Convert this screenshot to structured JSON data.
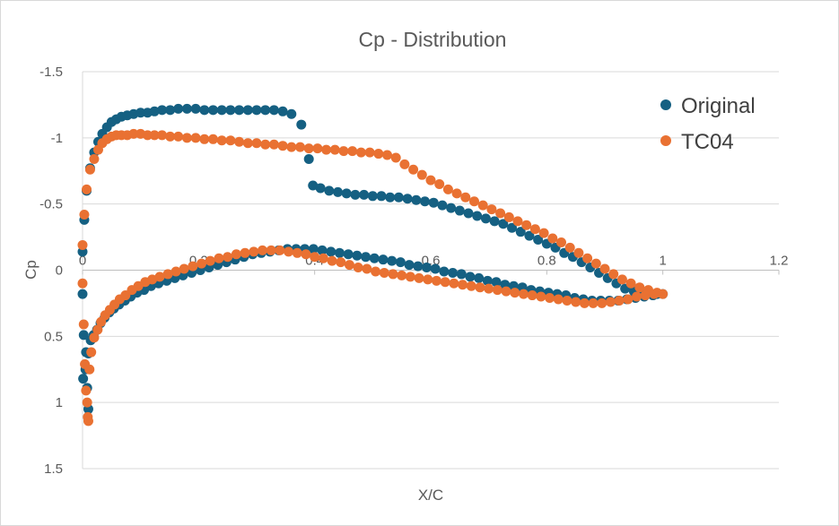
{
  "chart_data": {
    "type": "scatter",
    "title": "Cp - Distribution",
    "xlabel": "X/C",
    "ylabel": "Cp",
    "xlim": [
      0,
      1.2
    ],
    "ylim": [
      -1.5,
      1.5
    ],
    "y_reversed": true,
    "grid": "horizontal",
    "legend_position": "top-right",
    "x_ticks": [
      "0",
      "0.2",
      "0.4",
      "0.6",
      "0.8",
      "1",
      "1.2"
    ],
    "y_ticks": [
      "-1.5",
      "-1",
      "-0.5",
      "0",
      "0.5",
      "1",
      "1.5"
    ],
    "series": [
      {
        "name": "Original",
        "color": "#156082",
        "points": [
          [
            0.0,
            -0.14
          ],
          [
            0.003,
            -0.38
          ],
          [
            0.007,
            -0.6
          ],
          [
            0.013,
            -0.77
          ],
          [
            0.02,
            -0.89
          ],
          [
            0.027,
            -0.97
          ],
          [
            0.034,
            -1.03
          ],
          [
            0.042,
            -1.08
          ],
          [
            0.05,
            -1.12
          ],
          [
            0.058,
            -1.14
          ],
          [
            0.067,
            -1.16
          ],
          [
            0.077,
            -1.17
          ],
          [
            0.088,
            -1.18
          ],
          [
            0.1,
            -1.19
          ],
          [
            0.112,
            -1.19
          ],
          [
            0.124,
            -1.2
          ],
          [
            0.137,
            -1.21
          ],
          [
            0.151,
            -1.21
          ],
          [
            0.165,
            -1.22
          ],
          [
            0.18,
            -1.22
          ],
          [
            0.195,
            -1.22
          ],
          [
            0.21,
            -1.21
          ],
          [
            0.225,
            -1.21
          ],
          [
            0.24,
            -1.21
          ],
          [
            0.255,
            -1.21
          ],
          [
            0.27,
            -1.21
          ],
          [
            0.285,
            -1.21
          ],
          [
            0.3,
            -1.21
          ],
          [
            0.315,
            -1.21
          ],
          [
            0.33,
            -1.21
          ],
          [
            0.345,
            -1.2
          ],
          [
            0.36,
            -1.18
          ],
          [
            0.377,
            -1.1
          ],
          [
            0.39,
            -0.84
          ],
          [
            0.397,
            -0.64
          ],
          [
            0.41,
            -0.62
          ],
          [
            0.425,
            -0.6
          ],
          [
            0.44,
            -0.59
          ],
          [
            0.455,
            -0.58
          ],
          [
            0.47,
            -0.57
          ],
          [
            0.485,
            -0.57
          ],
          [
            0.5,
            -0.56
          ],
          [
            0.515,
            -0.56
          ],
          [
            0.53,
            -0.55
          ],
          [
            0.545,
            -0.55
          ],
          [
            0.56,
            -0.54
          ],
          [
            0.575,
            -0.53
          ],
          [
            0.59,
            -0.52
          ],
          [
            0.605,
            -0.51
          ],
          [
            0.62,
            -0.49
          ],
          [
            0.635,
            -0.47
          ],
          [
            0.65,
            -0.45
          ],
          [
            0.665,
            -0.43
          ],
          [
            0.68,
            -0.41
          ],
          [
            0.695,
            -0.39
          ],
          [
            0.71,
            -0.37
          ],
          [
            0.725,
            -0.35
          ],
          [
            0.74,
            -0.32
          ],
          [
            0.755,
            -0.29
          ],
          [
            0.77,
            -0.26
          ],
          [
            0.785,
            -0.23
          ],
          [
            0.8,
            -0.2
          ],
          [
            0.815,
            -0.17
          ],
          [
            0.83,
            -0.13
          ],
          [
            0.845,
            -0.1
          ],
          [
            0.86,
            -0.06
          ],
          [
            0.875,
            -0.02
          ],
          [
            0.89,
            0.02
          ],
          [
            0.905,
            0.06
          ],
          [
            0.92,
            0.1
          ],
          [
            0.935,
            0.14
          ],
          [
            0.95,
            0.16
          ],
          [
            0.965,
            0.17
          ],
          [
            0.98,
            0.18
          ],
          [
            0.99,
            0.18
          ],
          [
            1.0,
            0.18
          ],
          [
            0.0,
            0.18
          ],
          [
            0.002,
            0.49
          ],
          [
            0.005,
            0.75
          ],
          [
            0.008,
            0.89
          ],
          [
            0.01,
            1.05
          ],
          [
            0.001,
            0.82
          ],
          [
            0.006,
            0.62
          ],
          [
            0.01,
            0.63
          ],
          [
            0.014,
            0.53
          ],
          [
            0.019,
            0.49
          ],
          [
            0.025,
            0.45
          ],
          [
            0.031,
            0.4
          ],
          [
            0.038,
            0.36
          ],
          [
            0.046,
            0.32
          ],
          [
            0.054,
            0.29
          ],
          [
            0.063,
            0.26
          ],
          [
            0.073,
            0.23
          ],
          [
            0.083,
            0.2
          ],
          [
            0.094,
            0.17
          ],
          [
            0.106,
            0.15
          ],
          [
            0.118,
            0.12
          ],
          [
            0.131,
            0.1
          ],
          [
            0.145,
            0.08
          ],
          [
            0.159,
            0.06
          ],
          [
            0.173,
            0.04
          ],
          [
            0.188,
            0.02
          ],
          [
            0.203,
            0.0
          ],
          [
            0.218,
            -0.02
          ],
          [
            0.233,
            -0.04
          ],
          [
            0.248,
            -0.06
          ],
          [
            0.263,
            -0.08
          ],
          [
            0.278,
            -0.1
          ],
          [
            0.293,
            -0.12
          ],
          [
            0.308,
            -0.13
          ],
          [
            0.323,
            -0.14
          ],
          [
            0.338,
            -0.15
          ],
          [
            0.353,
            -0.16
          ],
          [
            0.368,
            -0.16
          ],
          [
            0.383,
            -0.16
          ],
          [
            0.398,
            -0.16
          ],
          [
            0.413,
            -0.15
          ],
          [
            0.428,
            -0.14
          ],
          [
            0.443,
            -0.13
          ],
          [
            0.458,
            -0.12
          ],
          [
            0.473,
            -0.11
          ],
          [
            0.488,
            -0.1
          ],
          [
            0.503,
            -0.09
          ],
          [
            0.518,
            -0.08
          ],
          [
            0.533,
            -0.07
          ],
          [
            0.548,
            -0.06
          ],
          [
            0.563,
            -0.04
          ],
          [
            0.578,
            -0.03
          ],
          [
            0.593,
            -0.02
          ],
          [
            0.608,
            -0.01
          ],
          [
            0.623,
            0.01
          ],
          [
            0.638,
            0.02
          ],
          [
            0.653,
            0.03
          ],
          [
            0.668,
            0.05
          ],
          [
            0.683,
            0.06
          ],
          [
            0.698,
            0.08
          ],
          [
            0.713,
            0.09
          ],
          [
            0.728,
            0.11
          ],
          [
            0.743,
            0.12
          ],
          [
            0.758,
            0.13
          ],
          [
            0.773,
            0.15
          ],
          [
            0.788,
            0.16
          ],
          [
            0.803,
            0.17
          ],
          [
            0.818,
            0.18
          ],
          [
            0.833,
            0.19
          ],
          [
            0.848,
            0.21
          ],
          [
            0.863,
            0.22
          ],
          [
            0.878,
            0.23
          ],
          [
            0.893,
            0.23
          ],
          [
            0.908,
            0.23
          ],
          [
            0.923,
            0.23
          ],
          [
            0.938,
            0.22
          ],
          [
            0.953,
            0.21
          ],
          [
            0.968,
            0.2
          ],
          [
            0.983,
            0.19
          ]
        ]
      },
      {
        "name": "TC04",
        "color": "#E97132",
        "points": [
          [
            0.0,
            -0.19
          ],
          [
            0.003,
            -0.42
          ],
          [
            0.007,
            -0.61
          ],
          [
            0.013,
            -0.76
          ],
          [
            0.02,
            -0.84
          ],
          [
            0.027,
            -0.91
          ],
          [
            0.034,
            -0.96
          ],
          [
            0.042,
            -0.99
          ],
          [
            0.05,
            -1.01
          ],
          [
            0.058,
            -1.02
          ],
          [
            0.067,
            -1.02
          ],
          [
            0.077,
            -1.02
          ],
          [
            0.088,
            -1.03
          ],
          [
            0.1,
            -1.03
          ],
          [
            0.112,
            -1.02
          ],
          [
            0.124,
            -1.02
          ],
          [
            0.137,
            -1.02
          ],
          [
            0.151,
            -1.01
          ],
          [
            0.165,
            -1.01
          ],
          [
            0.18,
            -1.0
          ],
          [
            0.195,
            -1.0
          ],
          [
            0.21,
            -0.99
          ],
          [
            0.225,
            -0.99
          ],
          [
            0.24,
            -0.98
          ],
          [
            0.255,
            -0.98
          ],
          [
            0.27,
            -0.97
          ],
          [
            0.285,
            -0.96
          ],
          [
            0.3,
            -0.96
          ],
          [
            0.315,
            -0.95
          ],
          [
            0.33,
            -0.95
          ],
          [
            0.345,
            -0.94
          ],
          [
            0.36,
            -0.93
          ],
          [
            0.375,
            -0.93
          ],
          [
            0.39,
            -0.92
          ],
          [
            0.405,
            -0.92
          ],
          [
            0.42,
            -0.91
          ],
          [
            0.435,
            -0.91
          ],
          [
            0.45,
            -0.9
          ],
          [
            0.465,
            -0.9
          ],
          [
            0.48,
            -0.89
          ],
          [
            0.495,
            -0.89
          ],
          [
            0.51,
            -0.88
          ],
          [
            0.525,
            -0.87
          ],
          [
            0.54,
            -0.85
          ],
          [
            0.555,
            -0.8
          ],
          [
            0.57,
            -0.76
          ],
          [
            0.585,
            -0.72
          ],
          [
            0.6,
            -0.68
          ],
          [
            0.615,
            -0.65
          ],
          [
            0.63,
            -0.61
          ],
          [
            0.645,
            -0.58
          ],
          [
            0.66,
            -0.55
          ],
          [
            0.675,
            -0.52
          ],
          [
            0.69,
            -0.49
          ],
          [
            0.705,
            -0.46
          ],
          [
            0.72,
            -0.43
          ],
          [
            0.735,
            -0.4
          ],
          [
            0.75,
            -0.37
          ],
          [
            0.765,
            -0.34
          ],
          [
            0.78,
            -0.31
          ],
          [
            0.795,
            -0.28
          ],
          [
            0.81,
            -0.24
          ],
          [
            0.825,
            -0.21
          ],
          [
            0.84,
            -0.17
          ],
          [
            0.855,
            -0.13
          ],
          [
            0.87,
            -0.09
          ],
          [
            0.885,
            -0.05
          ],
          [
            0.9,
            -0.01
          ],
          [
            0.915,
            0.03
          ],
          [
            0.93,
            0.07
          ],
          [
            0.945,
            0.1
          ],
          [
            0.96,
            0.13
          ],
          [
            0.975,
            0.15
          ],
          [
            0.99,
            0.17
          ],
          [
            1.0,
            0.18
          ],
          [
            0.0,
            0.1
          ],
          [
            0.002,
            0.41
          ],
          [
            0.004,
            0.71
          ],
          [
            0.006,
            0.91
          ],
          [
            0.008,
            1.0
          ],
          [
            0.009,
            1.11
          ],
          [
            0.01,
            1.14
          ],
          [
            0.012,
            0.75
          ],
          [
            0.015,
            0.62
          ],
          [
            0.02,
            0.51
          ],
          [
            0.026,
            0.45
          ],
          [
            0.032,
            0.39
          ],
          [
            0.039,
            0.34
          ],
          [
            0.047,
            0.3
          ],
          [
            0.055,
            0.26
          ],
          [
            0.064,
            0.22
          ],
          [
            0.074,
            0.19
          ],
          [
            0.085,
            0.15
          ],
          [
            0.096,
            0.12
          ],
          [
            0.108,
            0.09
          ],
          [
            0.12,
            0.07
          ],
          [
            0.133,
            0.05
          ],
          [
            0.147,
            0.03
          ],
          [
            0.161,
            0.01
          ],
          [
            0.175,
            -0.01
          ],
          [
            0.19,
            -0.03
          ],
          [
            0.205,
            -0.05
          ],
          [
            0.22,
            -0.07
          ],
          [
            0.235,
            -0.09
          ],
          [
            0.25,
            -0.1
          ],
          [
            0.265,
            -0.12
          ],
          [
            0.28,
            -0.13
          ],
          [
            0.295,
            -0.14
          ],
          [
            0.31,
            -0.15
          ],
          [
            0.325,
            -0.15
          ],
          [
            0.34,
            -0.15
          ],
          [
            0.355,
            -0.14
          ],
          [
            0.37,
            -0.13
          ],
          [
            0.385,
            -0.12
          ],
          [
            0.4,
            -0.1
          ],
          [
            0.415,
            -0.09
          ],
          [
            0.43,
            -0.07
          ],
          [
            0.445,
            -0.06
          ],
          [
            0.46,
            -0.04
          ],
          [
            0.475,
            -0.02
          ],
          [
            0.49,
            -0.01
          ],
          [
            0.505,
            0.01
          ],
          [
            0.52,
            0.02
          ],
          [
            0.535,
            0.03
          ],
          [
            0.55,
            0.04
          ],
          [
            0.565,
            0.05
          ],
          [
            0.58,
            0.06
          ],
          [
            0.595,
            0.07
          ],
          [
            0.61,
            0.08
          ],
          [
            0.625,
            0.09
          ],
          [
            0.64,
            0.1
          ],
          [
            0.655,
            0.11
          ],
          [
            0.67,
            0.12
          ],
          [
            0.685,
            0.13
          ],
          [
            0.7,
            0.14
          ],
          [
            0.715,
            0.15
          ],
          [
            0.73,
            0.16
          ],
          [
            0.745,
            0.17
          ],
          [
            0.76,
            0.18
          ],
          [
            0.775,
            0.19
          ],
          [
            0.79,
            0.2
          ],
          [
            0.805,
            0.21
          ],
          [
            0.82,
            0.22
          ],
          [
            0.835,
            0.23
          ],
          [
            0.85,
            0.24
          ],
          [
            0.865,
            0.25
          ],
          [
            0.88,
            0.25
          ],
          [
            0.895,
            0.25
          ],
          [
            0.91,
            0.24
          ],
          [
            0.925,
            0.23
          ],
          [
            0.94,
            0.22
          ],
          [
            0.955,
            0.2
          ],
          [
            0.97,
            0.19
          ],
          [
            0.985,
            0.18
          ]
        ]
      }
    ]
  }
}
